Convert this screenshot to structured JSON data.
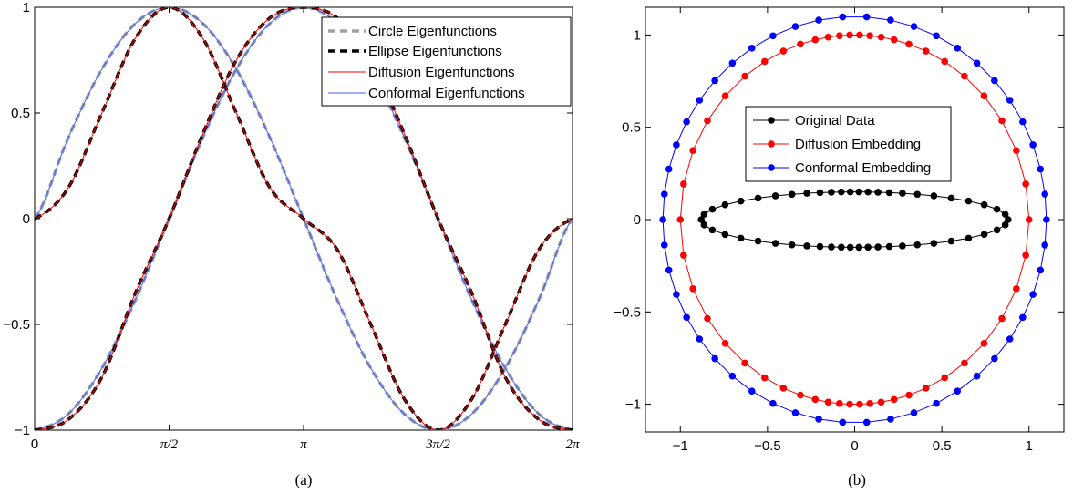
{
  "captions": {
    "left": "(a)",
    "right": "(b)"
  },
  "chart_data": [
    {
      "type": "line",
      "panel": "(a)",
      "xlabel": "",
      "ylabel": "",
      "xlim": [
        0,
        6.2832
      ],
      "ylim": [
        -1,
        1
      ],
      "x_ticks": [
        {
          "value": 0,
          "label": "0"
        },
        {
          "value": 1.5708,
          "label": "π/2"
        },
        {
          "value": 3.1416,
          "label": "π"
        },
        {
          "value": 4.7124,
          "label": "3π/2"
        },
        {
          "value": 6.2832,
          "label": "2π"
        }
      ],
      "y_ticks": [
        {
          "value": -1,
          "label": "−1"
        },
        {
          "value": -0.5,
          "label": "−0.5"
        },
        {
          "value": 0,
          "label": "0"
        },
        {
          "value": 0.5,
          "label": "0.5"
        },
        {
          "value": 1,
          "label": "1"
        }
      ],
      "legend": {
        "position": "top-right",
        "entries": [
          {
            "label": "Circle Eigenfunctions",
            "color": "#a0a0a0",
            "style": "dashed"
          },
          {
            "label": "Ellipse Eigenfunctions",
            "color": "#000000",
            "style": "dashed"
          },
          {
            "label": "Diffusion Eigenfunctions",
            "color": "#ff0000",
            "style": "solid"
          },
          {
            "label": "Conformal Eigenfunctions",
            "color": "#4060ff",
            "style": "solid"
          }
        ]
      },
      "x": [
        0,
        0.3927,
        0.7854,
        1.1781,
        1.5708,
        1.9635,
        2.3562,
        2.7489,
        3.1416,
        3.5343,
        3.927,
        4.3197,
        4.7124,
        5.1051,
        5.4978,
        5.8905,
        6.2832
      ],
      "series": [
        {
          "name": "Circle Eigenfunctions",
          "group": "circle_conformal",
          "values": [
            0,
            0.383,
            0.707,
            0.924,
            1,
            0.924,
            0.707,
            0.383,
            0,
            -0.383,
            -0.707,
            -0.924,
            -1,
            -0.924,
            -0.707,
            -0.383,
            0
          ]
        },
        {
          "name": "Circle Eigenfunctions",
          "group": "circle_conformal",
          "values": [
            -1,
            -0.924,
            -0.707,
            -0.383,
            0,
            0.383,
            0.707,
            0.924,
            1,
            0.924,
            0.707,
            0.383,
            0,
            -0.383,
            -0.707,
            -0.924,
            -1
          ]
        },
        {
          "name": "Ellipse Eigenfunctions",
          "group": "ellipse_diffusion",
          "values": [
            0,
            0.146,
            0.5,
            0.854,
            1,
            0.854,
            0.5,
            0.146,
            0,
            -0.146,
            -0.5,
            -0.854,
            -1,
            -0.854,
            -0.5,
            -0.146,
            0
          ]
        },
        {
          "name": "Ellipse Eigenfunctions",
          "group": "ellipse_diffusion",
          "values": [
            -1,
            -0.95,
            -0.75,
            -0.35,
            0,
            0.4,
            0.75,
            0.95,
            1,
            0.95,
            0.75,
            0.4,
            0,
            -0.35,
            -0.75,
            -0.95,
            -1
          ]
        }
      ]
    },
    {
      "type": "scatter",
      "panel": "(b)",
      "xlabel": "",
      "ylabel": "",
      "xlim": [
        -1.2,
        1.2
      ],
      "ylim": [
        -1.15,
        1.15
      ],
      "x_ticks": [
        {
          "value": -1,
          "label": "−1"
        },
        {
          "value": -0.5,
          "label": "−0.5"
        },
        {
          "value": 0,
          "label": "0"
        },
        {
          "value": 0.5,
          "label": "0.5"
        },
        {
          "value": 1,
          "label": "1"
        }
      ],
      "y_ticks": [
        {
          "value": -1,
          "label": "−1"
        },
        {
          "value": -0.5,
          "label": "−0.5"
        },
        {
          "value": 0,
          "label": "0"
        },
        {
          "value": 0.5,
          "label": "0.5"
        },
        {
          "value": 1,
          "label": "1"
        }
      ],
      "legend": {
        "position": "upper-center",
        "entries": [
          {
            "label": "Original Data",
            "color": "#000000"
          },
          {
            "label": "Diffusion Embedding",
            "color": "#ff0000"
          },
          {
            "label": "Conformal Embedding",
            "color": "#0000ff"
          }
        ]
      },
      "series": [
        {
          "name": "Original Data",
          "color": "#000000",
          "points_per_loop": 50,
          "rx": 0.88,
          "ry": 0.15,
          "clustered": true
        },
        {
          "name": "Diffusion Embedding",
          "color": "#ff0000",
          "points_per_loop": 50,
          "rx": 1.0,
          "ry": 1.0,
          "clustered": true
        },
        {
          "name": "Conformal Embedding",
          "color": "#0000ff",
          "points_per_loop": 50,
          "rx": 1.1,
          "ry": 1.1,
          "clustered": false
        }
      ]
    }
  ]
}
